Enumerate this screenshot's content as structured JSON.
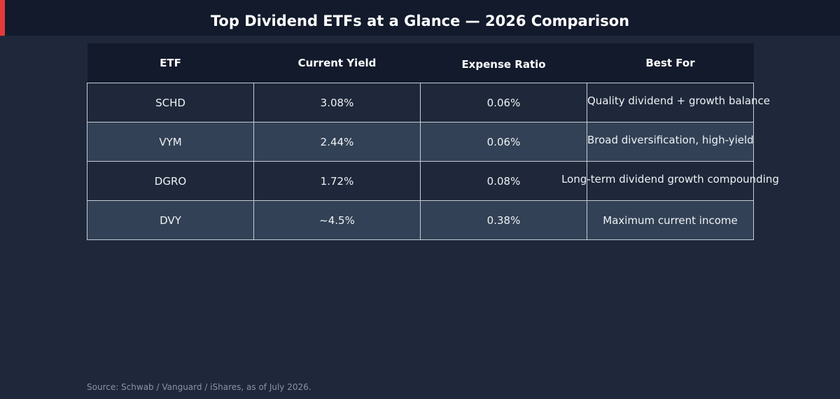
{
  "title": "Top Dividend ETFs at a Glance — 2026 Comparison",
  "colors": {
    "background": "#1f283a",
    "header_bg": "#121a2c",
    "accent": "#e63a3a",
    "row_alt": "#324155",
    "border": "#c6ccd6"
  },
  "table": {
    "headers": [
      "ETF",
      "Current Yield",
      "Expense Ratio",
      "Best For"
    ],
    "rows": [
      {
        "etf": "SCHD",
        "yield": "3.08%",
        "expense": "0.06%",
        "best_for": "Quality dividend + growth balance"
      },
      {
        "etf": "VYM",
        "yield": "2.44%",
        "expense": "0.06%",
        "best_for": "Broad diversification, high-yield"
      },
      {
        "etf": "DGRO",
        "yield": "1.72%",
        "expense": "0.08%",
        "best_for": "Long-term dividend growth compounding"
      },
      {
        "etf": "DVY",
        "yield": "~4.5%",
        "expense": "0.38%",
        "best_for": "Maximum current income"
      }
    ]
  },
  "source": "Source: Schwab / Vanguard / iShares, as of July 2026."
}
